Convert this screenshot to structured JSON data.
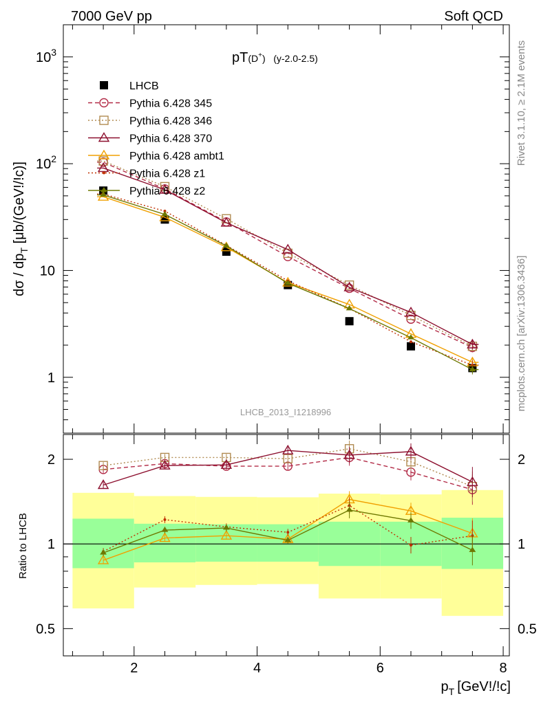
{
  "header": {
    "energy_label": "7000 GeV pp",
    "category_label": "Soft QCD",
    "plot_title_main": "pT",
    "plot_title_particle": "(D",
    "plot_title_charge": "+",
    "plot_title_close": ")",
    "plot_title_range": "(y-2.0-2.5)",
    "analysis_id": "LHCB_2013_I1218996",
    "side_label_rivet": "Rivet 3.1.10, ≥ 2.1M events",
    "side_label_source": "mcplots.cern.ch [arXiv:1306.3436]"
  },
  "axes": {
    "main_ylabel": "dσ / dp_T [μb/(GeV!/!c)]",
    "ratio_ylabel": "Ratio to LHCB",
    "xlabel_p": "p",
    "xlabel_sub": "T",
    "xlabel_units": "[GeV!/!c]",
    "ylabel_part1": "dσ / dp",
    "ylabel_sub": "T",
    "ylabel_part2": " [μb/(GeV!/!c)]"
  },
  "chart_data": [
    {
      "type": "scatter",
      "panel": "main",
      "x_label": "p_T [GeV!/!c]",
      "y_label": "dσ / dp_T [μb/(GeV!/!c)]",
      "xlim": [
        0.85,
        8.1
      ],
      "ylim": [
        0.3,
        2000
      ],
      "yscale": "log",
      "x_ticks": [
        2,
        4,
        6,
        8
      ],
      "y_tick_labels": [
        "1",
        "10",
        "10^2",
        "10^3"
      ],
      "legend_position": "top-left",
      "x": [
        1.5,
        2.5,
        3.5,
        4.5,
        5.5,
        6.5,
        7.5
      ],
      "x_bins": [
        [
          1,
          2
        ],
        [
          2,
          3
        ],
        [
          3,
          4
        ],
        [
          4,
          5
        ],
        [
          5,
          6
        ],
        [
          6,
          7
        ],
        [
          7,
          8
        ]
      ],
      "series": [
        {
          "name": "LHCB",
          "color": "#000000",
          "marker": "square-filled",
          "line": "none",
          "values": [
            56,
            30,
            15,
            7.3,
            3.35,
            1.95,
            1.22
          ]
        },
        {
          "name": "Pythia 6.428 345",
          "color": "#b22a46",
          "marker": "circle-open",
          "line": "dashed",
          "values": [
            103,
            58,
            28.5,
            13.5,
            6.8,
            3.5,
            1.9
          ]
        },
        {
          "name": "Pythia 6.428 346",
          "color": "#b08a50",
          "marker": "square-open",
          "line": "dotted",
          "values": [
            106,
            61,
            30.5,
            14.5,
            7.3,
            3.8,
            1.95
          ]
        },
        {
          "name": "Pythia 6.428 370",
          "color": "#8c0f2e",
          "marker": "triangle-open",
          "line": "solid",
          "values": [
            91,
            57,
            28,
            15.7,
            6.95,
            4.05,
            2.03
          ]
        },
        {
          "name": "Pythia 6.428 ambt1",
          "color": "#f0a000",
          "marker": "triangle-open",
          "line": "solid",
          "values": [
            49,
            31.5,
            16.5,
            7.7,
            4.8,
            2.55,
            1.38
          ]
        },
        {
          "name": "Pythia 6.428 z1",
          "color": "#c03000",
          "marker": "dot",
          "line": "dotted",
          "values": [
            52,
            36,
            17.2,
            8.0,
            4.4,
            2.15,
            1.3
          ]
        },
        {
          "name": "Pythia 6.428 z2",
          "color": "#6e7800",
          "marker": "triangle-filled-small",
          "line": "solid",
          "values": [
            51,
            33.5,
            17.0,
            7.6,
            4.4,
            2.35,
            1.18
          ]
        }
      ]
    },
    {
      "type": "scatter",
      "panel": "ratio",
      "x_label": "p_T [GeV!/!c]",
      "y_label": "Ratio to LHCB",
      "xlim": [
        0.85,
        8.1
      ],
      "ylim": [
        0.4,
        2.45
      ],
      "yscale": "log",
      "x_ticks": [
        2,
        4,
        6,
        8
      ],
      "y_tick_labels": [
        "0.5",
        "1",
        "2"
      ],
      "x": [
        1.5,
        2.5,
        3.5,
        4.5,
        5.5,
        6.5,
        7.5
      ],
      "uncertainty_bands": {
        "x_bins": [
          [
            1,
            2
          ],
          [
            2,
            3
          ],
          [
            3,
            4
          ],
          [
            4,
            5
          ],
          [
            5,
            6
          ],
          [
            6,
            7
          ],
          [
            7,
            8
          ]
        ],
        "yellow_low": [
          0.59,
          0.7,
          0.715,
          0.72,
          0.64,
          0.64,
          0.555
        ],
        "yellow_high": [
          1.52,
          1.48,
          1.47,
          1.465,
          1.51,
          1.5,
          1.555
        ],
        "green_low": [
          0.82,
          0.86,
          0.865,
          0.865,
          0.835,
          0.835,
          0.815
        ],
        "green_high": [
          1.23,
          1.18,
          1.175,
          1.175,
          1.2,
          1.2,
          1.24
        ],
        "yellow_color": "#ffff99",
        "green_color": "#99ff99"
      },
      "series": [
        {
          "name": "Pythia 6.428 345",
          "color": "#b22a46",
          "values": [
            1.84,
            1.93,
            1.89,
            1.89,
            2.03,
            1.8,
            1.56
          ]
        },
        {
          "name": "Pythia 6.428 346",
          "color": "#b08a50",
          "values": [
            1.9,
            2.03,
            2.03,
            2.01,
            2.18,
            1.96,
            1.6
          ]
        },
        {
          "name": "Pythia 6.428 370",
          "color": "#8c0f2e",
          "values": [
            1.62,
            1.9,
            1.91,
            2.15,
            2.07,
            2.13,
            1.66
          ]
        },
        {
          "name": "Pythia 6.428 ambt1",
          "color": "#f0a000",
          "values": [
            0.875,
            1.05,
            1.07,
            1.04,
            1.44,
            1.31,
            1.09
          ]
        },
        {
          "name": "Pythia 6.428 z1",
          "color": "#c03000",
          "values": [
            0.94,
            1.22,
            1.15,
            1.1,
            1.37,
            0.99,
            1.07
          ]
        },
        {
          "name": "Pythia 6.428 z2",
          "color": "#6e7800",
          "values": [
            0.93,
            1.12,
            1.14,
            1.03,
            1.32,
            1.21,
            0.95
          ]
        }
      ]
    }
  ]
}
